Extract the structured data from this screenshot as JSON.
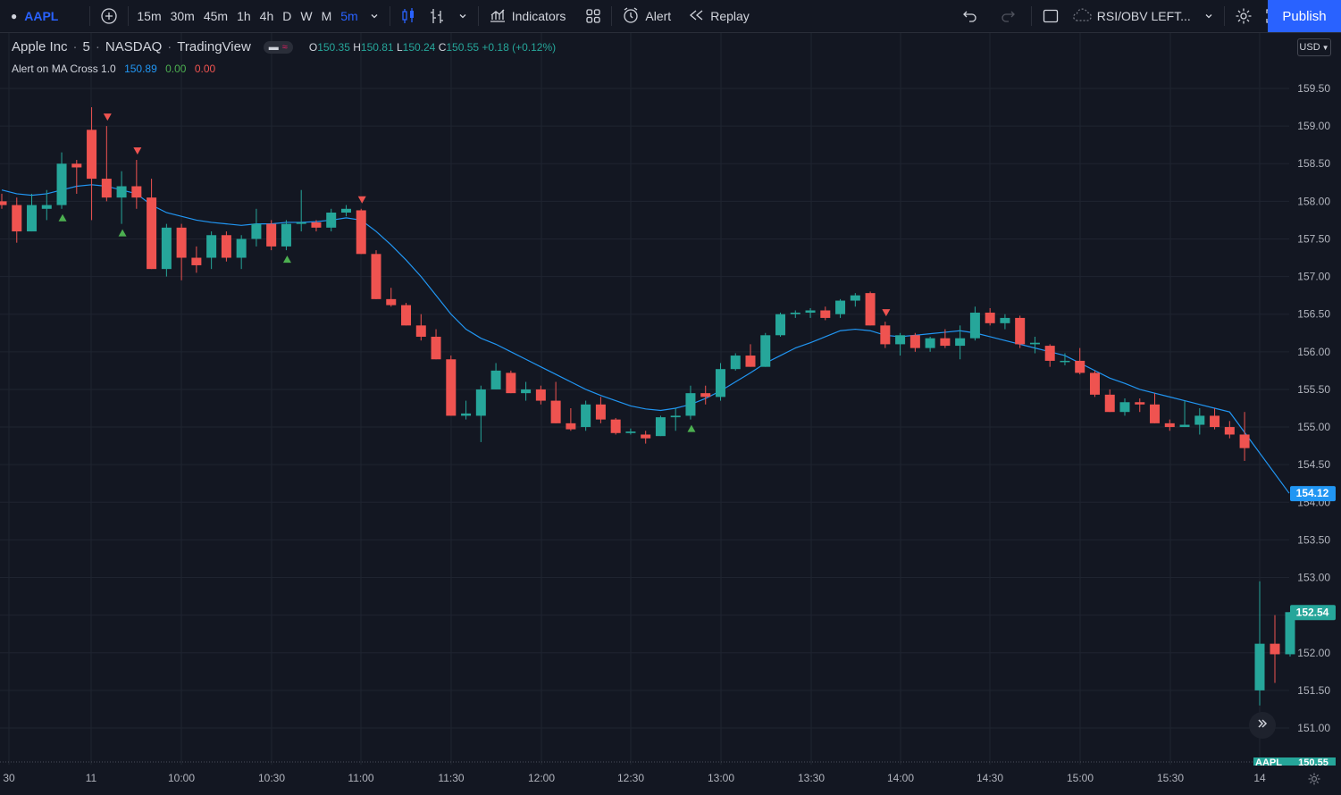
{
  "toolbar": {
    "symbol": "AAPL",
    "intervals": [
      "15m",
      "30m",
      "45m",
      "1h",
      "4h",
      "D",
      "W",
      "M",
      "5m"
    ],
    "active_interval": "5m",
    "indicators_label": "Indicators",
    "alert_label": "Alert",
    "replay_label": "Replay",
    "layout_name": "RSI/OBV LEFT...",
    "publish_label": "Publish"
  },
  "legend": {
    "name": "Apple Inc",
    "interval": "5",
    "exchange": "NASDAQ",
    "source": "TradingView",
    "open_label": "O",
    "open": "150.35",
    "high_label": "H",
    "high": "150.81",
    "low_label": "L",
    "low": "150.24",
    "close_label": "C",
    "close": "150.55",
    "change": "+0.18 (+0.12%)"
  },
  "indicator": {
    "name": "Alert on MA Cross 1.0",
    "v1": "150.89",
    "v2": "0.00",
    "v3": "0.00"
  },
  "currency": "USD",
  "colors": {
    "up": "#26a69a",
    "down": "#ef5350",
    "ma": "#2196f3",
    "grid": "#1f2430",
    "bg": "#131722",
    "accent": "#2962ff",
    "buy_marker": "#4caf50",
    "sell_marker": "#ef5350"
  },
  "price_labels": {
    "ma_value": "154.12",
    "last_price": "152.54",
    "bottom_symbol": "AAPL",
    "bottom_price": "150.55"
  },
  "chart_data": {
    "type": "candlestick",
    "ylim": [
      150.8,
      159.7
    ],
    "yticks": [
      159.5,
      159.0,
      158.5,
      158.0,
      157.5,
      157.0,
      156.5,
      156.0,
      155.5,
      155.0,
      154.5,
      154.0,
      153.5,
      153.0,
      152.5,
      152.0,
      151.5,
      151.0
    ],
    "xticks": [
      "30",
      "11",
      "10:00",
      "10:30",
      "11:00",
      "11:30",
      "12:00",
      "12:30",
      "13:00",
      "13:30",
      "14:00",
      "14:30",
      "15:00",
      "15:30",
      "14"
    ],
    "candles": [
      {
        "o": 158.0,
        "h": 158.1,
        "l": 157.9,
        "c": 157.95
      },
      {
        "o": 157.95,
        "h": 158.05,
        "l": 157.45,
        "c": 157.6
      },
      {
        "o": 157.6,
        "h": 158.1,
        "l": 157.6,
        "c": 157.95
      },
      {
        "o": 157.9,
        "h": 158.15,
        "l": 157.75,
        "c": 157.95
      },
      {
        "o": 157.95,
        "h": 158.65,
        "l": 157.9,
        "c": 158.5
      },
      {
        "o": 158.5,
        "h": 158.55,
        "l": 158.1,
        "c": 158.45
      },
      {
        "o": 158.95,
        "h": 159.25,
        "l": 157.75,
        "c": 158.3
      },
      {
        "o": 158.3,
        "h": 159.0,
        "l": 158.0,
        "c": 158.05
      },
      {
        "o": 158.05,
        "h": 158.4,
        "l": 157.7,
        "c": 158.2
      },
      {
        "o": 158.2,
        "h": 158.55,
        "l": 157.9,
        "c": 158.05
      },
      {
        "o": 158.05,
        "h": 158.3,
        "l": 157.1,
        "c": 157.1
      },
      {
        "o": 157.1,
        "h": 157.7,
        "l": 157.0,
        "c": 157.65
      },
      {
        "o": 157.65,
        "h": 157.7,
        "l": 156.95,
        "c": 157.25
      },
      {
        "o": 157.25,
        "h": 157.4,
        "l": 157.05,
        "c": 157.15
      },
      {
        "o": 157.25,
        "h": 157.6,
        "l": 157.1,
        "c": 157.55
      },
      {
        "o": 157.55,
        "h": 157.6,
        "l": 157.2,
        "c": 157.25
      },
      {
        "o": 157.25,
        "h": 157.55,
        "l": 157.1,
        "c": 157.5
      },
      {
        "o": 157.5,
        "h": 157.9,
        "l": 157.4,
        "c": 157.7
      },
      {
        "o": 157.7,
        "h": 157.75,
        "l": 157.35,
        "c": 157.4
      },
      {
        "o": 157.4,
        "h": 157.75,
        "l": 157.35,
        "c": 157.7
      },
      {
        "o": 157.7,
        "h": 158.15,
        "l": 157.6,
        "c": 157.72
      },
      {
        "o": 157.72,
        "h": 157.75,
        "l": 157.6,
        "c": 157.65
      },
      {
        "o": 157.65,
        "h": 157.9,
        "l": 157.6,
        "c": 157.85
      },
      {
        "o": 157.85,
        "h": 157.95,
        "l": 157.8,
        "c": 157.9
      },
      {
        "o": 157.88,
        "h": 157.9,
        "l": 157.3,
        "c": 157.3
      },
      {
        "o": 157.3,
        "h": 157.35,
        "l": 156.7,
        "c": 156.7
      },
      {
        "o": 156.7,
        "h": 156.85,
        "l": 156.6,
        "c": 156.62
      },
      {
        "o": 156.62,
        "h": 156.65,
        "l": 156.35,
        "c": 156.35
      },
      {
        "o": 156.35,
        "h": 156.5,
        "l": 156.15,
        "c": 156.2
      },
      {
        "o": 156.2,
        "h": 156.3,
        "l": 155.9,
        "c": 155.9
      },
      {
        "o": 155.9,
        "h": 155.95,
        "l": 155.15,
        "c": 155.15
      },
      {
        "o": 155.15,
        "h": 155.35,
        "l": 155.1,
        "c": 155.18
      },
      {
        "o": 155.15,
        "h": 155.55,
        "l": 154.8,
        "c": 155.5
      },
      {
        "o": 155.5,
        "h": 155.85,
        "l": 155.5,
        "c": 155.75
      },
      {
        "o": 155.72,
        "h": 155.75,
        "l": 155.45,
        "c": 155.45
      },
      {
        "o": 155.45,
        "h": 155.6,
        "l": 155.35,
        "c": 155.5
      },
      {
        "o": 155.5,
        "h": 155.55,
        "l": 155.3,
        "c": 155.35
      },
      {
        "o": 155.35,
        "h": 155.6,
        "l": 155.05,
        "c": 155.05
      },
      {
        "o": 155.05,
        "h": 155.25,
        "l": 154.95,
        "c": 154.97
      },
      {
        "o": 155.0,
        "h": 155.35,
        "l": 154.95,
        "c": 155.3
      },
      {
        "o": 155.3,
        "h": 155.4,
        "l": 155.05,
        "c": 155.1
      },
      {
        "o": 155.1,
        "h": 155.12,
        "l": 154.9,
        "c": 154.92
      },
      {
        "o": 154.92,
        "h": 154.98,
        "l": 154.9,
        "c": 154.94
      },
      {
        "o": 154.9,
        "h": 154.95,
        "l": 154.78,
        "c": 154.85
      },
      {
        "o": 154.88,
        "h": 155.15,
        "l": 154.88,
        "c": 155.13
      },
      {
        "o": 155.13,
        "h": 155.25,
        "l": 154.95,
        "c": 155.15
      },
      {
        "o": 155.15,
        "h": 155.55,
        "l": 155.1,
        "c": 155.45
      },
      {
        "o": 155.45,
        "h": 155.55,
        "l": 155.3,
        "c": 155.4
      },
      {
        "o": 155.4,
        "h": 155.85,
        "l": 155.35,
        "c": 155.77
      },
      {
        "o": 155.77,
        "h": 155.98,
        "l": 155.75,
        "c": 155.95
      },
      {
        "o": 155.95,
        "h": 156.1,
        "l": 155.8,
        "c": 155.8
      },
      {
        "o": 155.8,
        "h": 156.25,
        "l": 155.8,
        "c": 156.22
      },
      {
        "o": 156.22,
        "h": 156.52,
        "l": 156.2,
        "c": 156.5
      },
      {
        "o": 156.5,
        "h": 156.55,
        "l": 156.45,
        "c": 156.52
      },
      {
        "o": 156.52,
        "h": 156.58,
        "l": 156.45,
        "c": 156.55
      },
      {
        "o": 156.55,
        "h": 156.6,
        "l": 156.42,
        "c": 156.45
      },
      {
        "o": 156.5,
        "h": 156.7,
        "l": 156.45,
        "c": 156.68
      },
      {
        "o": 156.68,
        "h": 156.78,
        "l": 156.6,
        "c": 156.75
      },
      {
        "o": 156.78,
        "h": 156.8,
        "l": 156.35,
        "c": 156.35
      },
      {
        "o": 156.35,
        "h": 156.4,
        "l": 156.05,
        "c": 156.1
      },
      {
        "o": 156.1,
        "h": 156.25,
        "l": 155.95,
        "c": 156.22
      },
      {
        "o": 156.22,
        "h": 156.25,
        "l": 156.0,
        "c": 156.05
      },
      {
        "o": 156.05,
        "h": 156.2,
        "l": 156.0,
        "c": 156.18
      },
      {
        "o": 156.18,
        "h": 156.3,
        "l": 156.05,
        "c": 156.08
      },
      {
        "o": 156.08,
        "h": 156.35,
        "l": 155.9,
        "c": 156.18
      },
      {
        "o": 156.18,
        "h": 156.6,
        "l": 156.15,
        "c": 156.52
      },
      {
        "o": 156.52,
        "h": 156.58,
        "l": 156.35,
        "c": 156.38
      },
      {
        "o": 156.38,
        "h": 156.5,
        "l": 156.3,
        "c": 156.45
      },
      {
        "o": 156.45,
        "h": 156.48,
        "l": 156.05,
        "c": 156.1
      },
      {
        "o": 156.1,
        "h": 156.2,
        "l": 155.98,
        "c": 156.12
      },
      {
        "o": 156.08,
        "h": 156.1,
        "l": 155.8,
        "c": 155.88
      },
      {
        "o": 155.88,
        "h": 155.98,
        "l": 155.82,
        "c": 155.88
      },
      {
        "o": 155.88,
        "h": 156.05,
        "l": 155.7,
        "c": 155.72
      },
      {
        "o": 155.72,
        "h": 155.75,
        "l": 155.4,
        "c": 155.43
      },
      {
        "o": 155.43,
        "h": 155.5,
        "l": 155.2,
        "c": 155.2
      },
      {
        "o": 155.2,
        "h": 155.38,
        "l": 155.15,
        "c": 155.33
      },
      {
        "o": 155.33,
        "h": 155.38,
        "l": 155.2,
        "c": 155.3
      },
      {
        "o": 155.3,
        "h": 155.45,
        "l": 155.05,
        "c": 155.05
      },
      {
        "o": 155.05,
        "h": 155.1,
        "l": 154.95,
        "c": 155.0
      },
      {
        "o": 155.0,
        "h": 155.35,
        "l": 155.0,
        "c": 155.03
      },
      {
        "o": 155.03,
        "h": 155.25,
        "l": 154.9,
        "c": 155.15
      },
      {
        "o": 155.15,
        "h": 155.25,
        "l": 154.97,
        "c": 155.0
      },
      {
        "o": 155.0,
        "h": 155.08,
        "l": 154.85,
        "c": 154.9
      },
      {
        "o": 154.9,
        "h": 155.2,
        "l": 154.55,
        "c": 154.72
      }
    ],
    "candles_right": [
      {
        "o": 151.5,
        "h": 152.95,
        "l": 151.3,
        "c": 152.12
      },
      {
        "o": 152.12,
        "h": 152.5,
        "l": 151.6,
        "c": 151.98
      },
      {
        "o": 151.98,
        "h": 152.54,
        "l": 151.95,
        "c": 152.54
      }
    ],
    "ma_series": [
      158.15,
      158.1,
      158.08,
      158.1,
      158.15,
      158.2,
      158.22,
      158.2,
      158.15,
      158.1,
      157.95,
      157.85,
      157.8,
      157.75,
      157.72,
      157.7,
      157.68,
      157.7,
      157.7,
      157.72,
      157.72,
      157.73,
      157.75,
      157.78,
      157.75,
      157.6,
      157.42,
      157.22,
      157.0,
      156.75,
      156.5,
      156.3,
      156.18,
      156.1,
      156.0,
      155.9,
      155.8,
      155.7,
      155.6,
      155.5,
      155.42,
      155.35,
      155.28,
      155.24,
      155.22,
      155.25,
      155.3,
      155.38,
      155.48,
      155.6,
      155.72,
      155.85,
      155.95,
      156.05,
      156.12,
      156.2,
      156.28,
      156.3,
      156.28,
      156.22,
      156.2,
      156.22,
      156.24,
      156.26,
      156.28,
      156.25,
      156.2,
      156.15,
      156.1,
      156.05,
      156.0,
      155.95,
      155.85,
      155.75,
      155.65,
      155.58,
      155.5,
      155.45,
      155.4,
      155.35,
      155.3,
      155.25,
      155.2
    ],
    "ma_tail_end": 154.12,
    "buy_markers": [
      4,
      8,
      19,
      46
    ],
    "sell_markers": [
      7,
      9,
      24,
      59
    ]
  }
}
